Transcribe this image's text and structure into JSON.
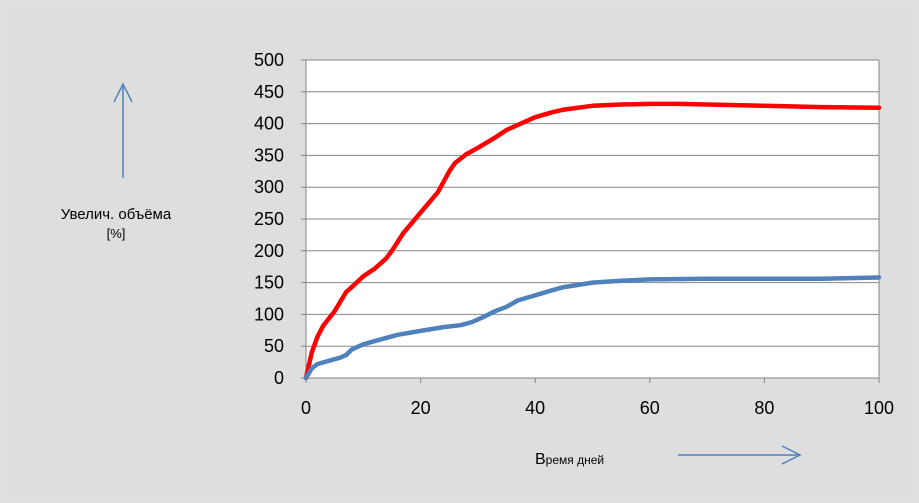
{
  "chart_data": {
    "type": "line",
    "title": "",
    "ylabel_line1": "Увелич. объёма",
    "ylabel_line2": "[%]",
    "xlabel_first": "В",
    "xlabel_rest": "ремя дней",
    "xlim": [
      0,
      100
    ],
    "ylim": [
      0,
      500
    ],
    "x_ticks": [
      0,
      20,
      40,
      60,
      80,
      100
    ],
    "y_ticks": [
      0,
      50,
      100,
      150,
      200,
      250,
      300,
      350,
      400,
      450,
      500
    ],
    "grid": true,
    "legend": "none",
    "series": [
      {
        "color": "#ff0000",
        "points": [
          [
            0,
            0
          ],
          [
            1,
            40
          ],
          [
            2,
            65
          ],
          [
            3,
            82
          ],
          [
            5,
            105
          ],
          [
            7,
            135
          ],
          [
            8,
            143
          ],
          [
            10,
            160
          ],
          [
            12,
            172
          ],
          [
            14,
            188
          ],
          [
            15,
            200
          ],
          [
            17,
            228
          ],
          [
            20,
            260
          ],
          [
            23,
            292
          ],
          [
            25,
            325
          ],
          [
            26,
            338
          ],
          [
            28,
            352
          ],
          [
            30,
            362
          ],
          [
            33,
            378
          ],
          [
            35,
            390
          ],
          [
            38,
            402
          ],
          [
            40,
            410
          ],
          [
            43,
            418
          ],
          [
            45,
            422
          ],
          [
            50,
            428
          ],
          [
            55,
            430
          ],
          [
            60,
            431
          ],
          [
            65,
            431
          ],
          [
            70,
            430
          ],
          [
            80,
            428
          ],
          [
            90,
            426
          ],
          [
            100,
            425
          ]
        ]
      },
      {
        "color": "#4f81bd",
        "points": [
          [
            0,
            0
          ],
          [
            1,
            15
          ],
          [
            2,
            22
          ],
          [
            4,
            27
          ],
          [
            6,
            32
          ],
          [
            7,
            36
          ],
          [
            8,
            45
          ],
          [
            10,
            53
          ],
          [
            12,
            58
          ],
          [
            14,
            63
          ],
          [
            16,
            68
          ],
          [
            20,
            74
          ],
          [
            24,
            80
          ],
          [
            27,
            83
          ],
          [
            29,
            88
          ],
          [
            31,
            96
          ],
          [
            33,
            105
          ],
          [
            35,
            112
          ],
          [
            37,
            122
          ],
          [
            40,
            130
          ],
          [
            43,
            138
          ],
          [
            45,
            143
          ],
          [
            50,
            150
          ],
          [
            55,
            153
          ],
          [
            60,
            155
          ],
          [
            70,
            156
          ],
          [
            80,
            156
          ],
          [
            90,
            156
          ],
          [
            95,
            157
          ],
          [
            100,
            158
          ]
        ]
      }
    ]
  }
}
